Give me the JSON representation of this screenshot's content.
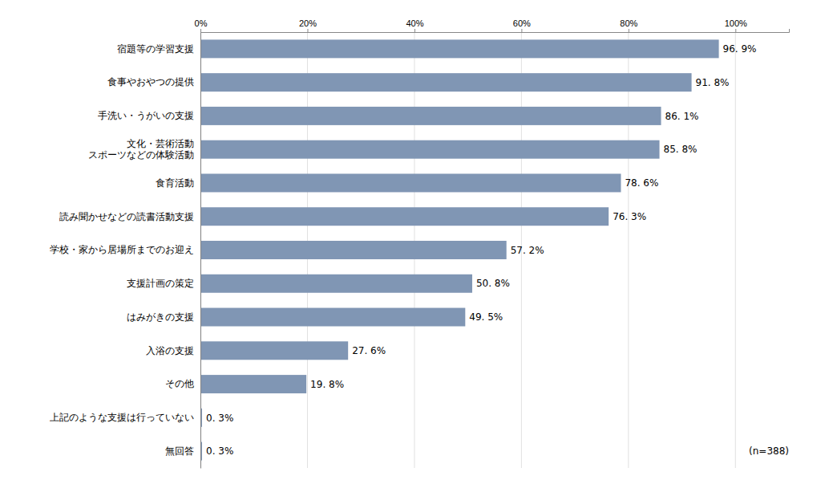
{
  "chart_data": {
    "type": "bar",
    "orientation": "horizontal",
    "categories": [
      "無回答",
      "上記のような支援は行っていない",
      "その他",
      "入浴の支援",
      "はみがきの支援",
      "支援計画の策定",
      "学校・家から居場所までのお迎え",
      "読み聞かせなどの読書活動支援",
      "食育活動",
      "文化・芸術活動\nスポーツなどの体験活動",
      "手洗い・うがいの支援",
      "食事やおやつの提供",
      "宿題等の学習支援"
    ],
    "values": [
      0.3,
      0.3,
      19.8,
      27.6,
      49.5,
      50.8,
      57.2,
      76.3,
      78.6,
      85.8,
      86.1,
      91.8,
      96.9
    ],
    "value_labels": [
      "0. 3%",
      "0. 3%",
      "19. 8%",
      "27. 6%",
      "49. 5%",
      "50. 8%",
      "57. 2%",
      "76. 3%",
      "78. 6%",
      "85. 8%",
      "86. 1%",
      "91. 8%",
      "96. 9%"
    ],
    "data_labels": true,
    "color": "#8096b4",
    "xlim": [
      0,
      110
    ],
    "xticks": [
      {
        "value": 0,
        "label": "0%"
      },
      {
        "value": 20,
        "label": "20%"
      },
      {
        "value": 40,
        "label": "40%"
      },
      {
        "value": 60,
        "label": "60%"
      },
      {
        "value": 80,
        "label": "80%"
      },
      {
        "value": 100,
        "label": "100%"
      }
    ],
    "grid": true,
    "annotations": [
      "(n=388)"
    ]
  }
}
